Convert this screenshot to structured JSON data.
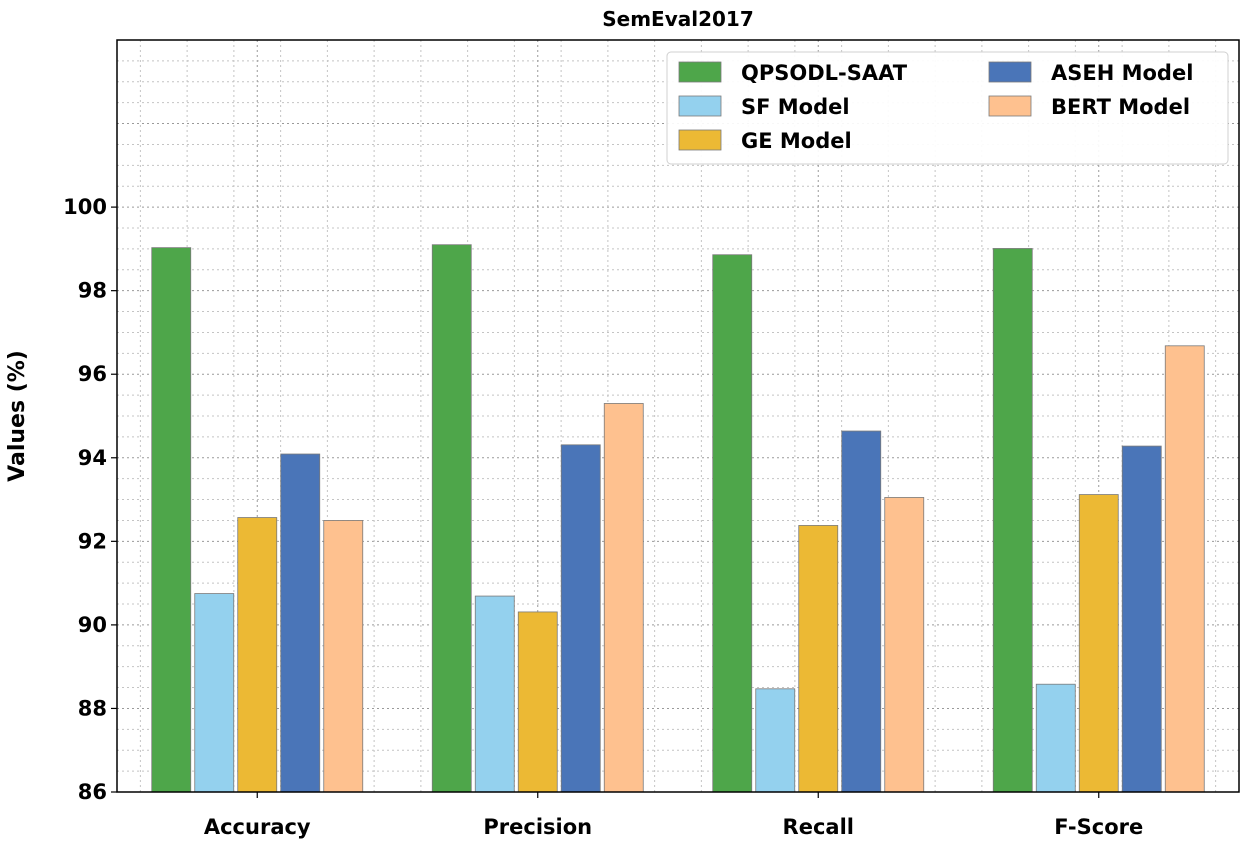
{
  "chart_data": {
    "type": "bar",
    "title": "SemEval2017",
    "xlabel": "",
    "ylabel": "Values (%)",
    "ylim": [
      86,
      104
    ],
    "yticks": [
      86,
      88,
      90,
      92,
      94,
      96,
      98,
      100
    ],
    "grid": true,
    "legend_position": "top-right",
    "categories": [
      "Accuracy",
      "Precision",
      "Recall",
      "F-Score"
    ],
    "series": [
      {
        "name": "QPSODL-SAAT",
        "color": "#4ea64a",
        "values": [
          99.03,
          99.1,
          98.86,
          99.01
        ]
      },
      {
        "name": "SF Model",
        "color": "#94d1ee",
        "values": [
          90.75,
          90.69,
          88.47,
          88.58
        ]
      },
      {
        "name": "GE Model",
        "color": "#ecb934",
        "values": [
          92.57,
          90.31,
          92.38,
          93.12
        ]
      },
      {
        "name": "ASEH Model",
        "color": "#4a75b8",
        "values": [
          94.09,
          94.31,
          94.64,
          94.28
        ]
      },
      {
        "name": "BERT Model",
        "color": "#fec18f",
        "values": [
          92.5,
          95.3,
          93.05,
          96.68
        ]
      }
    ]
  }
}
